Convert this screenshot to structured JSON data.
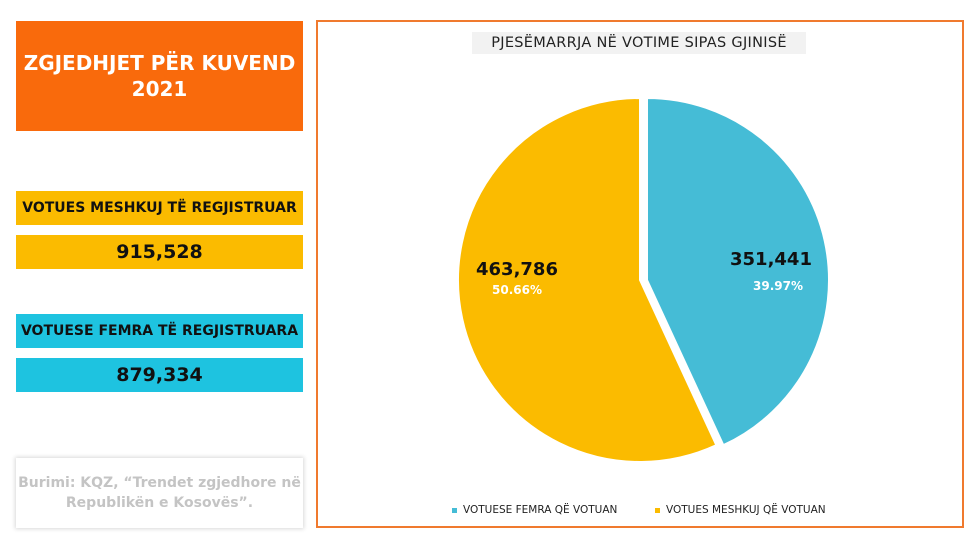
{
  "header": {
    "title_line1": "ZGJEDHJET PËR KUVEND",
    "title_line2": "2021"
  },
  "stats": {
    "male_label": "VOTUES MESHKUJ TË REGJISTRUAR",
    "male_value": "915,528",
    "female_label": "VOTUESE FEMRA TË REGJISTRUARA",
    "female_value": "879,334"
  },
  "source": {
    "line1": "Burimi: KQZ, “Trendet zgjedhore në",
    "line2": "Republikën e Kosovës”."
  },
  "colors": {
    "orange": "#f96a0c",
    "yellow": "#fbbb00",
    "cyan": "#1ec3e0",
    "pie_blue": "#45bcd6",
    "pie_yellow": "#fbbb00"
  },
  "chart_data": {
    "type": "pie",
    "title": "PJESËMARRJA NË VOTIME SIPAS GJINISË",
    "series": [
      {
        "name": "VOTUESE FEMRA QË VOTUAN",
        "value": 351441,
        "value_label": "351,441",
        "percent_label": "39.97%"
      },
      {
        "name": "VOTUES MESHKUJ QË VOTUAN",
        "value": 463786,
        "value_label": "463,786",
        "percent_label": "50.66%"
      }
    ],
    "legend_position": "bottom"
  }
}
